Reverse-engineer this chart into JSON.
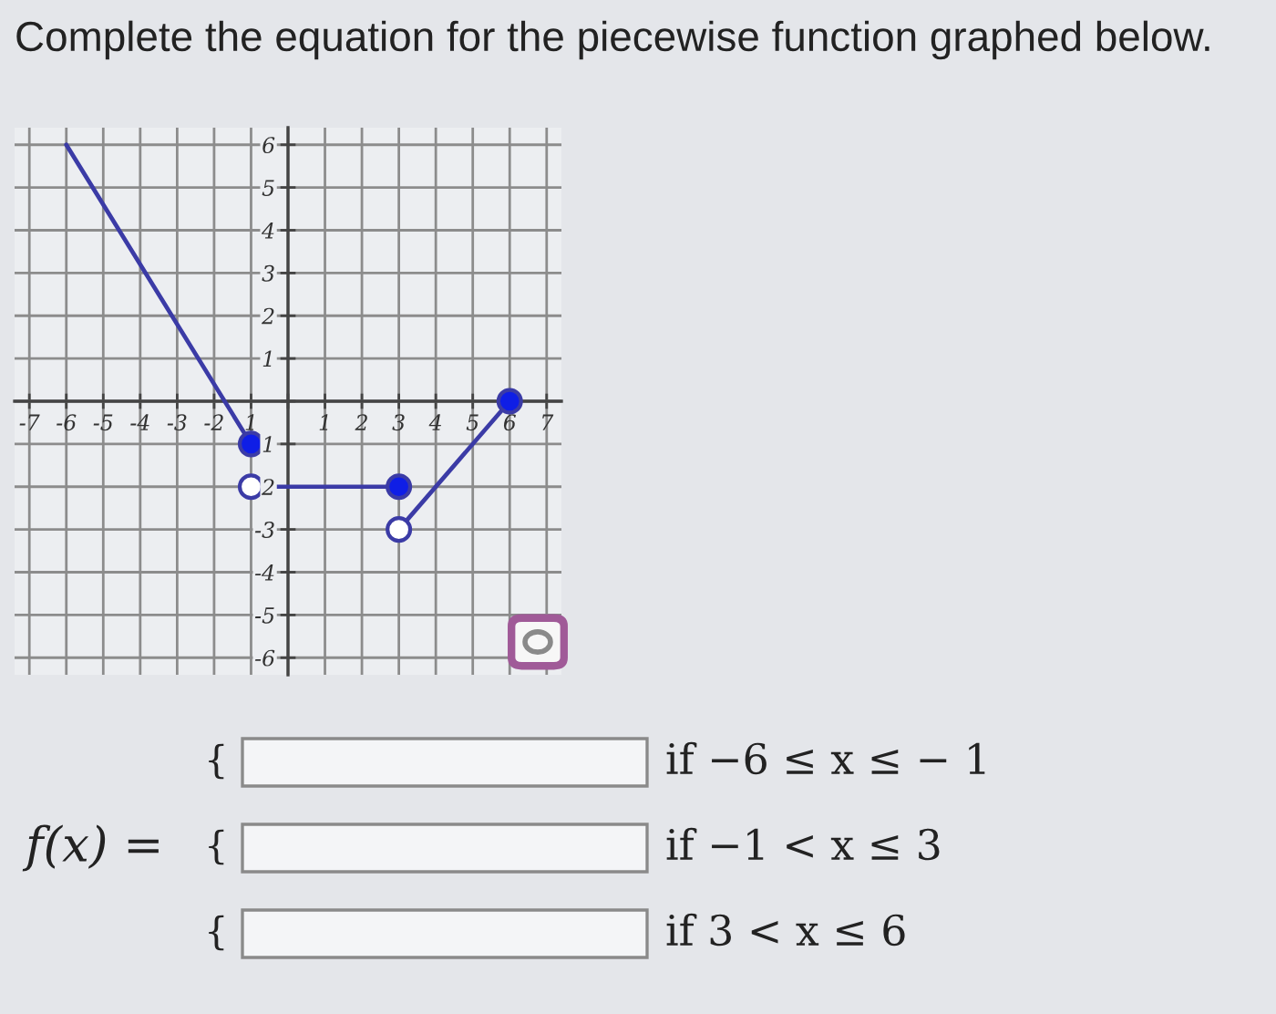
{
  "chart_data": {
    "type": "line",
    "title": "Complete the equation for the piecewise function graphed below.",
    "xlim": [
      -7.4,
      7.4
    ],
    "ylim": [
      -6.4,
      6.4
    ],
    "xticks": [
      -7,
      -6,
      -5,
      -4,
      -3,
      -2,
      {
        "value": -1,
        "label": "1"
      },
      {
        "value": 0,
        "label": null
      },
      1,
      2,
      3,
      4,
      5,
      6,
      7
    ],
    "yticks": [
      -6,
      -5,
      -4,
      -3,
      {
        "value": -2,
        "label": "2"
      },
      {
        "value": -1,
        "label": "1"
      },
      {
        "value": 0,
        "label": null
      },
      1,
      2,
      3,
      4,
      5,
      6
    ],
    "grid": true,
    "line_style": "solid",
    "series": [
      {
        "color": "#3b3ba6",
        "x": [
          -6,
          -1
        ],
        "values": [
          6,
          -1
        ],
        "marker": "none"
      },
      {
        "color": "#3b3ba6",
        "x": [
          -1,
          3
        ],
        "values": [
          -2,
          -2
        ],
        "marker": "none"
      },
      {
        "color": "#3b3ba6",
        "x": [
          3,
          6
        ],
        "values": [
          -3,
          0
        ],
        "marker": "none"
      },
      {
        "type": "scatter",
        "color": "#0f1ee6",
        "x": [
          -1,
          3,
          6
        ],
        "values": [
          -1,
          -2,
          0
        ],
        "marker": "circle"
      },
      {
        "type": "scatter",
        "color": "#ffffff",
        "x": [
          -1,
          3
        ],
        "values": [
          -2,
          -3
        ],
        "marker": "circle"
      }
    ],
    "annotations": [
      "f(x) =",
      "{",
      "if −6 ≤ x ≤ − 1",
      "{",
      "if −1 < x ≤ 3",
      "{",
      "if 3 < x ≤ 6"
    ]
  }
}
